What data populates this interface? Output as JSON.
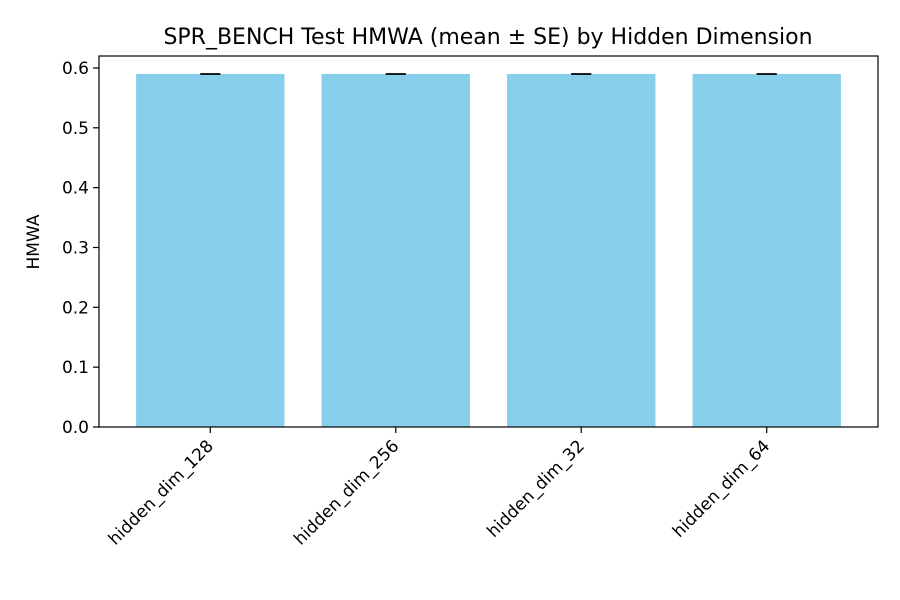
{
  "chart_data": {
    "type": "bar",
    "title": "SPR_BENCH Test HMWA (mean ± SE) by Hidden Dimension",
    "xlabel": "",
    "ylabel": "HMWA",
    "categories": [
      "hidden_dim_128",
      "hidden_dim_256",
      "hidden_dim_32",
      "hidden_dim_64"
    ],
    "series": [
      {
        "values": [
          0.59,
          0.59,
          0.59,
          0.59
        ],
        "errors": [
          0.0,
          0.0,
          0.0,
          0.0
        ]
      }
    ],
    "ylim": [
      0,
      0.62
    ],
    "yticks": [
      0.0,
      0.1,
      0.2,
      0.3,
      0.4,
      0.5,
      0.6
    ],
    "ytick_labels": [
      "0.0",
      "0.1",
      "0.2",
      "0.3",
      "0.4",
      "0.5",
      "0.6"
    ],
    "grid": false,
    "legend": "none",
    "bar_color": "#87CEEB",
    "error_color": "#000000"
  }
}
